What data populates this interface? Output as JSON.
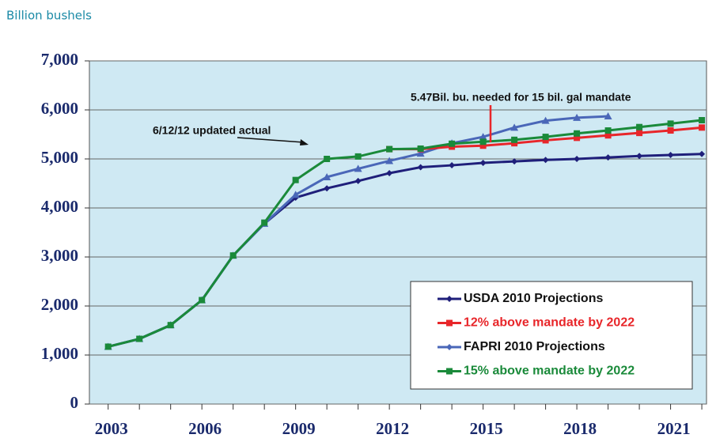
{
  "chart_data": {
    "type": "line",
    "title": "Billion bushels",
    "x": [
      2003,
      2004,
      2005,
      2006,
      2007,
      2008,
      2009,
      2010,
      2011,
      2012,
      2013,
      2014,
      2015,
      2016,
      2017,
      2018,
      2019,
      2020,
      2021,
      2022
    ],
    "series": [
      {
        "name": "USDA 2010 Projections",
        "color": "#1f1f7a",
        "marker": "diamond",
        "values": [
          1170,
          1330,
          1610,
          2120,
          3030,
          3680,
          4210,
          4400,
          4550,
          4710,
          4830,
          4870,
          4920,
          4950,
          4980,
          5000,
          5030,
          5060,
          5080,
          5100
        ]
      },
      {
        "name": "FAPRI 2010 Projections",
        "color": "#4a67b8",
        "marker": "triangle",
        "values": [
          1170,
          1330,
          1610,
          2120,
          3030,
          3680,
          4270,
          4630,
          4800,
          4960,
          5110,
          5320,
          5450,
          5640,
          5780,
          5840,
          5870,
          null,
          null,
          null
        ]
      },
      {
        "name": "12% above mandate by 2022",
        "color": "#e8262a",
        "marker": "square",
        "values": [
          null,
          null,
          null,
          null,
          null,
          null,
          null,
          null,
          null,
          5200,
          5200,
          5250,
          5270,
          5320,
          5380,
          5430,
          5480,
          5530,
          5580,
          5640
        ]
      },
      {
        "name": "15% above mandate by 2022",
        "color": "#1a8a3a",
        "marker": "square",
        "values": [
          1170,
          1330,
          1610,
          2120,
          3030,
          3700,
          4570,
          5000,
          5050,
          5200,
          5210,
          5310,
          5350,
          5390,
          5450,
          5520,
          5580,
          5650,
          5720,
          5790
        ]
      }
    ],
    "legend_order": [
      0,
      2,
      1,
      3
    ],
    "xlim": [
      2002.4,
      2022.15
    ],
    "xticks": [
      2003,
      2006,
      2009,
      2012,
      2015,
      2018,
      2021
    ],
    "ylim": [
      0,
      7000
    ],
    "yticks": [
      0,
      {
        "value": 1000,
        "label": "1,000"
      },
      {
        "value": 2000,
        "label": "2,000"
      },
      {
        "value": 3000,
        "label": "3,000"
      },
      {
        "value": 4000,
        "label": "4,000"
      },
      {
        "value": 5000,
        "label": "5,000"
      },
      {
        "value": 6000,
        "label": "6,000"
      },
      {
        "value": 7000,
        "label": "7,000"
      }
    ],
    "grid": true,
    "legend": "lower right",
    "annotations": [
      "6/12/12 updated actual",
      "5.47Bil. bu. needed for 15 bil. gal mandate"
    ]
  }
}
